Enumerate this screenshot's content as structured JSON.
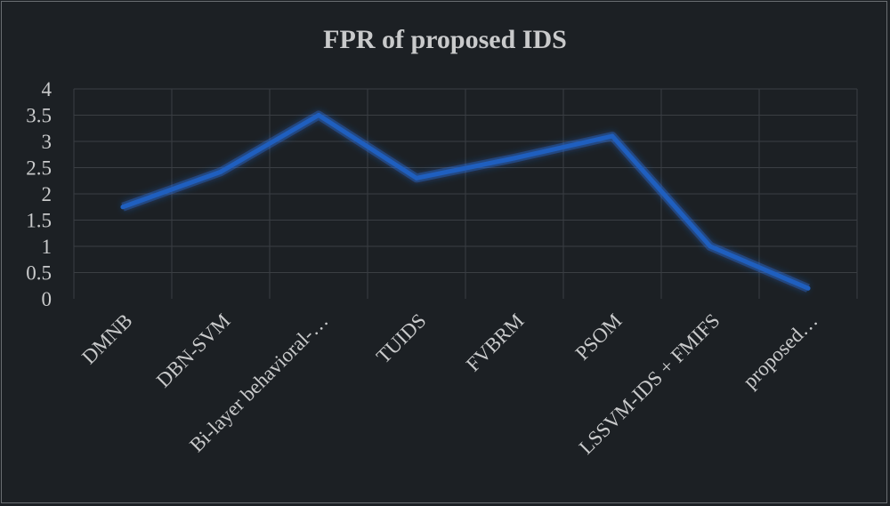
{
  "chart_data": {
    "type": "line",
    "title": "FPR of proposed IDS",
    "categories": [
      "DMNB",
      "DBN-SVM",
      "Bi-layer behavioral-…",
      "TUIDS",
      "FVBRM",
      "PSOM",
      "LSSVM-IDS + FMIFS",
      "proposed…"
    ],
    "series": [
      {
        "values": [
          1.75,
          2.42,
          3.5,
          2.3,
          2.68,
          3.1,
          1.0,
          0.2
        ]
      }
    ],
    "yticks": [
      "0",
      "0.5",
      "1",
      "1.5",
      "2",
      "2.5",
      "3",
      "3.5",
      "4"
    ],
    "ylim": [
      0,
      4
    ],
    "grid": true,
    "legend": "none",
    "colors": {
      "background": "#1c2024",
      "line": "#1f5fbf",
      "glow": "#2a6fe0",
      "text": "#c9cacb",
      "grid": "#3a3e43"
    }
  }
}
